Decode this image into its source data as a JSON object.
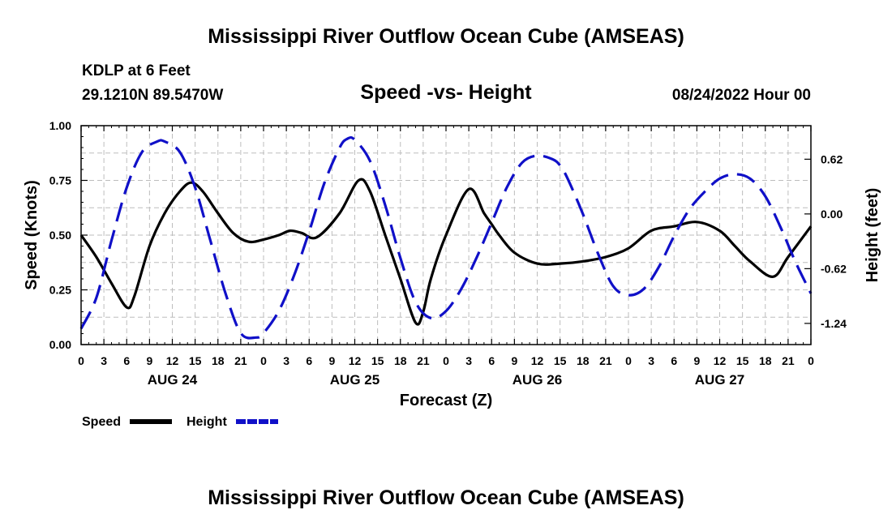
{
  "header": {
    "title": "Mississippi River Outflow Ocean Cube (AMSEAS)",
    "station": "KDLP at 6 Feet",
    "coords": "29.1210N  89.5470W",
    "subtitle": "Speed -vs- Height",
    "datetime": "08/24/2022 Hour 00"
  },
  "footer": {
    "title": "Mississippi River Outflow Ocean Cube (AMSEAS)"
  },
  "chart_data": {
    "type": "line",
    "title": "Speed -vs- Height",
    "xlabel": "Forecast (Z)",
    "ylabel": "Speed (Knots)",
    "y2label": "Height (feet)",
    "xlim": [
      0,
      96
    ],
    "ylim": [
      0,
      1
    ],
    "y2lim": [
      -1.48,
      1.0
    ],
    "grid": true,
    "x_ticks": [
      0,
      3,
      6,
      9,
      12,
      15,
      18,
      21,
      24,
      27,
      30,
      33,
      36,
      39,
      42,
      45,
      48,
      51,
      54,
      57,
      60,
      63,
      66,
      69,
      72,
      75,
      78,
      81,
      84,
      87,
      90,
      93,
      96
    ],
    "x_tick_labels": [
      "0",
      "3",
      "6",
      "9",
      "12",
      "15",
      "18",
      "21",
      "0",
      "3",
      "6",
      "9",
      "12",
      "15",
      "18",
      "21",
      "0",
      "3",
      "6",
      "9",
      "12",
      "15",
      "18",
      "21",
      "0",
      "3",
      "6",
      "9",
      "12",
      "15",
      "18",
      "21",
      "0"
    ],
    "day_labels": [
      {
        "x": 12,
        "label": "AUG 24"
      },
      {
        "x": 36,
        "label": "AUG 25"
      },
      {
        "x": 60,
        "label": "AUG 26"
      },
      {
        "x": 84,
        "label": "AUG 27"
      }
    ],
    "y_ticks": [
      0,
      0.25,
      0.5,
      0.75,
      1.0
    ],
    "y_tick_labels": [
      "0.00",
      "0.25",
      "0.50",
      "0.75",
      "1.00"
    ],
    "y2_ticks": [
      0.62,
      0.0,
      -0.62,
      -1.24
    ],
    "y2_tick_labels": [
      "0.62",
      "0.00",
      "-0.62",
      "-1.24"
    ],
    "legend": [
      {
        "name": "Speed",
        "color": "#000000",
        "style": "solid"
      },
      {
        "name": "Height",
        "color": "#1010c8",
        "style": "dashed"
      }
    ],
    "legend_position": "bottom-left",
    "series": [
      {
        "name": "Speed",
        "axis": "left",
        "color": "#000000",
        "x": [
          0,
          2,
          4,
          6,
          7,
          9,
          11,
          13,
          14.5,
          16,
          18,
          20,
          22,
          24,
          26,
          27.5,
          29,
          31,
          34,
          36.5,
          38,
          40,
          42,
          44,
          45,
          46,
          48,
          51,
          53,
          54,
          55,
          57,
          60,
          63,
          66,
          69,
          72,
          75,
          78,
          81,
          84,
          86,
          88,
          91,
          93,
          96
        ],
        "y": [
          0.5,
          0.4,
          0.28,
          0.17,
          0.22,
          0.45,
          0.6,
          0.7,
          0.74,
          0.7,
          0.6,
          0.51,
          0.47,
          0.48,
          0.5,
          0.52,
          0.51,
          0.49,
          0.6,
          0.75,
          0.7,
          0.5,
          0.3,
          0.1,
          0.15,
          0.3,
          0.5,
          0.71,
          0.6,
          0.55,
          0.5,
          0.42,
          0.37,
          0.37,
          0.38,
          0.4,
          0.44,
          0.52,
          0.54,
          0.56,
          0.52,
          0.45,
          0.38,
          0.31,
          0.4,
          0.54
        ]
      },
      {
        "name": "Height",
        "axis": "right",
        "color": "#1010c8",
        "x": [
          0,
          2,
          4,
          6,
          8,
          10,
          11,
          13,
          15,
          17,
          19,
          21,
          23,
          24,
          26,
          28,
          30,
          32,
          34,
          35,
          36,
          38,
          40,
          42,
          44,
          46,
          48,
          50,
          52,
          54,
          56,
          58,
          60,
          62,
          63,
          64,
          66,
          68,
          70,
          72,
          74,
          76,
          78,
          80,
          82,
          84,
          86,
          88,
          90,
          92,
          94,
          96
        ],
        "y": [
          -1.3,
          -0.95,
          -0.3,
          0.3,
          0.7,
          0.82,
          0.82,
          0.7,
          0.3,
          -0.3,
          -0.9,
          -1.35,
          -1.4,
          -1.35,
          -1.1,
          -0.7,
          -0.2,
          0.35,
          0.75,
          0.85,
          0.84,
          0.6,
          0.1,
          -0.5,
          -1.0,
          -1.18,
          -1.1,
          -0.85,
          -0.5,
          -0.1,
          0.3,
          0.58,
          0.66,
          0.62,
          0.55,
          0.4,
          0.0,
          -0.45,
          -0.82,
          -0.92,
          -0.85,
          -0.6,
          -0.25,
          0.05,
          0.25,
          0.4,
          0.45,
          0.4,
          0.2,
          -0.15,
          -0.55,
          -0.9
        ]
      }
    ]
  }
}
